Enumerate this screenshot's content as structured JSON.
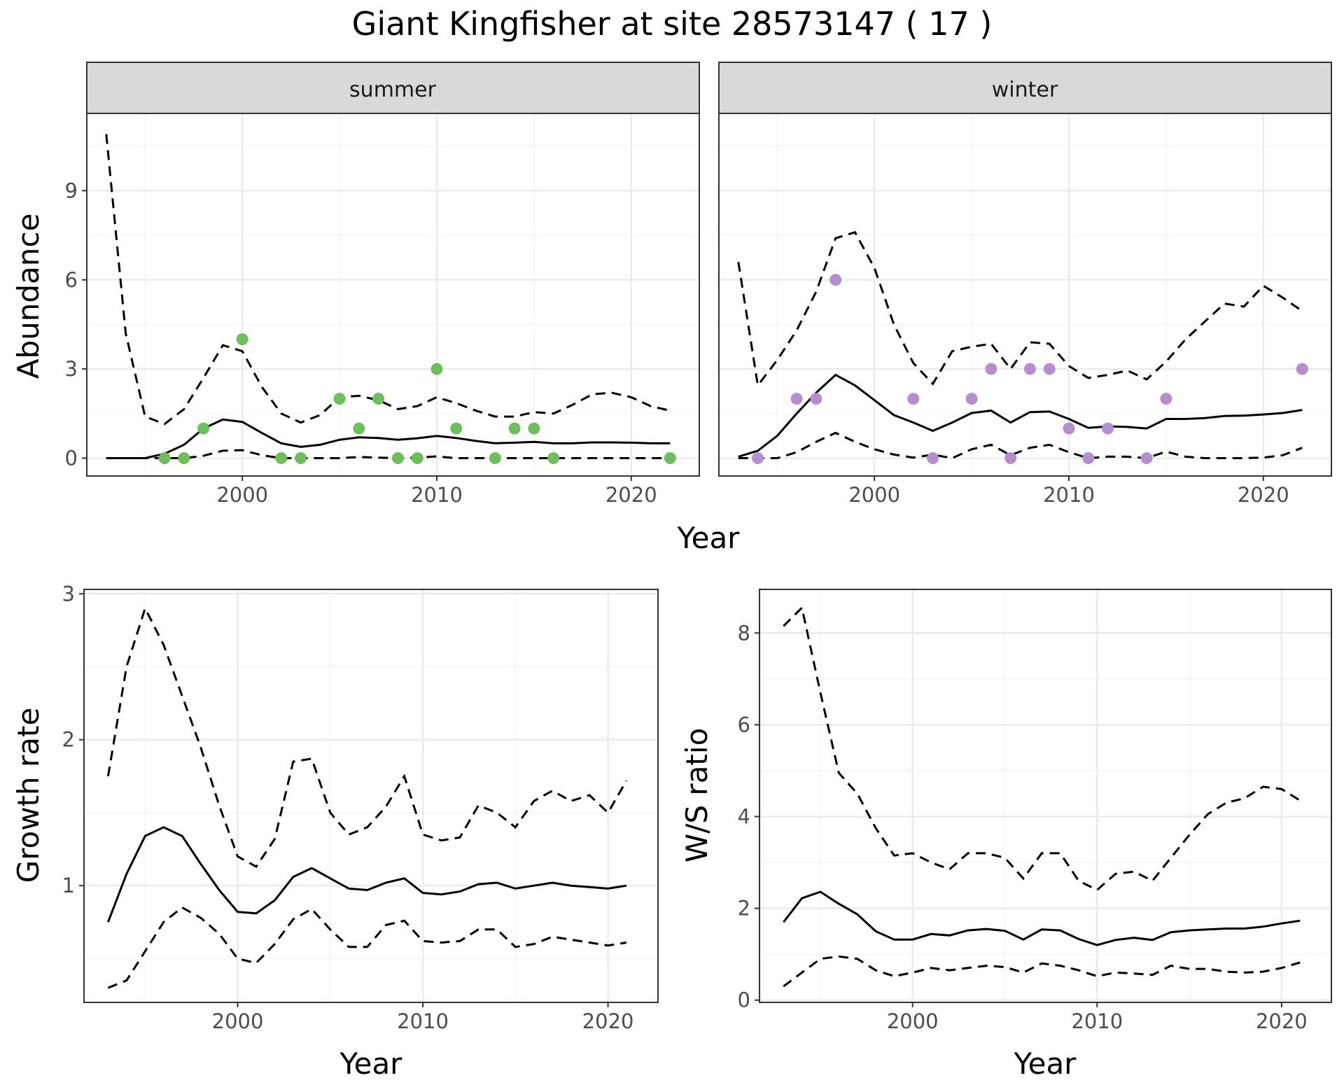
{
  "figure": {
    "title": "Giant Kingfisher at site 28573147 ( 17 )"
  },
  "colors": {
    "summer_points": "#6dbf5c",
    "winter_points": "#b48fd0",
    "line": "#000000",
    "grid_major": "#ebebeb",
    "grid_minor": "#f4f4f4",
    "strip_fill": "#d9d9d9",
    "panel_border": "#333333"
  },
  "chart_data": [
    {
      "type": "line",
      "panel": "abundance",
      "facets": [
        "summer",
        "winter"
      ],
      "xlabel": "Year",
      "ylabel": "Abundance",
      "xlim": [
        1992,
        2023.5
      ],
      "ylim": [
        -0.6,
        11.6
      ],
      "xticks": [
        2000,
        2010,
        2020
      ],
      "yticks": [
        0,
        3,
        6,
        9
      ],
      "grid": true,
      "summer": {
        "x": [
          1993,
          1994,
          1995,
          1996,
          1997,
          1998,
          1999,
          2000,
          2001,
          2002,
          2003,
          2004,
          2005,
          2006,
          2007,
          2008,
          2009,
          2010,
          2011,
          2012,
          2013,
          2014,
          2015,
          2016,
          2017,
          2018,
          2019,
          2020,
          2021,
          2022
        ],
        "mean": [
          0,
          0,
          0,
          0.15,
          0.45,
          1.0,
          1.3,
          1.22,
          0.85,
          0.5,
          0.38,
          0.45,
          0.62,
          0.7,
          0.68,
          0.62,
          0.67,
          0.75,
          0.68,
          0.58,
          0.5,
          0.52,
          0.55,
          0.5,
          0.5,
          0.53,
          0.53,
          0.52,
          0.5,
          0.5
        ],
        "upper": [
          10.9,
          4.2,
          1.4,
          1.15,
          1.65,
          2.7,
          3.8,
          3.6,
          2.4,
          1.5,
          1.2,
          1.45,
          2.05,
          2.1,
          1.95,
          1.65,
          1.75,
          2.05,
          1.85,
          1.6,
          1.4,
          1.4,
          1.55,
          1.5,
          1.8,
          2.15,
          2.2,
          2.05,
          1.75,
          1.6
        ],
        "lower": [
          0,
          0,
          0,
          0,
          0,
          0.08,
          0.25,
          0.27,
          0.1,
          0,
          0,
          0,
          0,
          0.04,
          0.02,
          0,
          0.02,
          0.06,
          0,
          0,
          0,
          0,
          0,
          0,
          0,
          0,
          0,
          0,
          0,
          0
        ],
        "points": [
          {
            "x": 1996,
            "y": 0
          },
          {
            "x": 1997,
            "y": 0
          },
          {
            "x": 1998,
            "y": 1
          },
          {
            "x": 2000,
            "y": 4
          },
          {
            "x": 2002,
            "y": 0
          },
          {
            "x": 2003,
            "y": 0
          },
          {
            "x": 2005,
            "y": 2
          },
          {
            "x": 2006,
            "y": 1
          },
          {
            "x": 2007,
            "y": 2
          },
          {
            "x": 2008,
            "y": 0
          },
          {
            "x": 2009,
            "y": 0
          },
          {
            "x": 2010,
            "y": 3
          },
          {
            "x": 2011,
            "y": 1
          },
          {
            "x": 2013,
            "y": 0
          },
          {
            "x": 2014,
            "y": 1
          },
          {
            "x": 2015,
            "y": 1
          },
          {
            "x": 2016,
            "y": 0
          },
          {
            "x": 2022,
            "y": 0
          }
        ]
      },
      "winter": {
        "x": [
          1993,
          1994,
          1995,
          1996,
          1997,
          1998,
          1999,
          2000,
          2001,
          2002,
          2003,
          2004,
          2005,
          2006,
          2007,
          2008,
          2009,
          2010,
          2011,
          2012,
          2013,
          2014,
          2015,
          2016,
          2017,
          2018,
          2019,
          2020,
          2021,
          2022
        ],
        "mean": [
          0.05,
          0.25,
          0.75,
          1.5,
          2.2,
          2.8,
          2.45,
          1.95,
          1.45,
          1.2,
          0.92,
          1.2,
          1.52,
          1.6,
          1.2,
          1.55,
          1.57,
          1.32,
          1.02,
          1.07,
          1.05,
          1.0,
          1.32,
          1.32,
          1.35,
          1.42,
          1.43,
          1.47,
          1.52,
          1.62
        ],
        "upper": [
          6.6,
          2.45,
          3.3,
          4.3,
          5.6,
          7.4,
          7.6,
          6.4,
          4.5,
          3.2,
          2.5,
          3.6,
          3.75,
          3.85,
          3.0,
          3.9,
          3.85,
          3.1,
          2.7,
          2.8,
          2.95,
          2.65,
          3.25,
          4.0,
          4.6,
          5.2,
          5.1,
          5.8,
          5.4,
          4.95
        ],
        "lower": [
          0,
          0,
          0,
          0.2,
          0.55,
          0.85,
          0.55,
          0.3,
          0.12,
          0.02,
          0.12,
          0,
          0.3,
          0.45,
          0.1,
          0.35,
          0.45,
          0.2,
          0,
          0.05,
          0.05,
          0,
          0.22,
          0.05,
          0,
          0,
          0,
          0.02,
          0.1,
          0.35
        ],
        "points": [
          {
            "x": 1994,
            "y": 0
          },
          {
            "x": 1996,
            "y": 2
          },
          {
            "x": 1997,
            "y": 2
          },
          {
            "x": 1998,
            "y": 6
          },
          {
            "x": 2002,
            "y": 2
          },
          {
            "x": 2003,
            "y": 0
          },
          {
            "x": 2005,
            "y": 2
          },
          {
            "x": 2006,
            "y": 3
          },
          {
            "x": 2007,
            "y": 0
          },
          {
            "x": 2008,
            "y": 3
          },
          {
            "x": 2009,
            "y": 3
          },
          {
            "x": 2010,
            "y": 1
          },
          {
            "x": 2011,
            "y": 0
          },
          {
            "x": 2012,
            "y": 1
          },
          {
            "x": 2014,
            "y": 0
          },
          {
            "x": 2015,
            "y": 2
          },
          {
            "x": 2022,
            "y": 3
          }
        ]
      }
    },
    {
      "type": "line",
      "panel": "growth",
      "xlabel": "Year",
      "ylabel": "Growth rate",
      "xlim": [
        1991.7,
        2022.7
      ],
      "ylim": [
        0.2,
        3.03
      ],
      "xticks": [
        2000,
        2010,
        2020
      ],
      "yticks": [
        1,
        2,
        3
      ],
      "grid": true,
      "x": [
        1993,
        1994,
        1995,
        1996,
        1997,
        1998,
        1999,
        2000,
        2001,
        2002,
        2003,
        2004,
        2005,
        2006,
        2007,
        2008,
        2009,
        2010,
        2011,
        2012,
        2013,
        2014,
        2015,
        2016,
        2017,
        2018,
        2019,
        2020,
        2021
      ],
      "mean": [
        0.75,
        1.08,
        1.34,
        1.4,
        1.34,
        1.15,
        0.97,
        0.82,
        0.81,
        0.9,
        1.06,
        1.12,
        1.05,
        0.98,
        0.97,
        1.02,
        1.05,
        0.95,
        0.94,
        0.96,
        1.01,
        1.02,
        0.98,
        1.0,
        1.02,
        1.0,
        0.99,
        0.98,
        1.0
      ],
      "upper": [
        1.75,
        2.5,
        2.9,
        2.65,
        2.3,
        1.95,
        1.55,
        1.2,
        1.13,
        1.32,
        1.85,
        1.87,
        1.5,
        1.35,
        1.4,
        1.54,
        1.75,
        1.35,
        1.31,
        1.33,
        1.55,
        1.5,
        1.4,
        1.58,
        1.65,
        1.58,
        1.62,
        1.5,
        1.72
      ],
      "lower": [
        0.3,
        0.35,
        0.55,
        0.75,
        0.85,
        0.78,
        0.67,
        0.5,
        0.47,
        0.6,
        0.77,
        0.84,
        0.7,
        0.58,
        0.58,
        0.73,
        0.76,
        0.62,
        0.61,
        0.62,
        0.7,
        0.7,
        0.58,
        0.6,
        0.65,
        0.63,
        0.61,
        0.59,
        0.61
      ]
    },
    {
      "type": "line",
      "panel": "ws_ratio",
      "xlabel": "Year",
      "ylabel": "W/S ratio",
      "xlim": [
        1991.7,
        2022.7
      ],
      "ylim": [
        -0.05,
        8.95
      ],
      "xticks": [
        2000,
        2010,
        2020
      ],
      "yticks": [
        0,
        2,
        4,
        6,
        8
      ],
      "grid": true,
      "x": [
        1993,
        1994,
        1995,
        1996,
        1997,
        1998,
        1999,
        2000,
        2001,
        2002,
        2003,
        2004,
        2005,
        2006,
        2007,
        2008,
        2009,
        2010,
        2011,
        2012,
        2013,
        2014,
        2015,
        2016,
        2017,
        2018,
        2019,
        2020,
        2021
      ],
      "mean": [
        1.7,
        2.22,
        2.36,
        2.1,
        1.87,
        1.5,
        1.32,
        1.32,
        1.44,
        1.41,
        1.52,
        1.55,
        1.51,
        1.32,
        1.54,
        1.52,
        1.33,
        1.2,
        1.31,
        1.36,
        1.31,
        1.48,
        1.52,
        1.54,
        1.56,
        1.56,
        1.6,
        1.67,
        1.73
      ],
      "upper": [
        8.15,
        8.55,
        6.7,
        4.95,
        4.5,
        3.75,
        3.15,
        3.2,
        3.0,
        2.85,
        3.2,
        3.2,
        3.1,
        2.65,
        3.2,
        3.2,
        2.6,
        2.4,
        2.75,
        2.8,
        2.6,
        3.1,
        3.6,
        4.05,
        4.3,
        4.4,
        4.65,
        4.6,
        4.35
      ],
      "lower": [
        0.3,
        0.6,
        0.9,
        0.95,
        0.9,
        0.65,
        0.52,
        0.6,
        0.7,
        0.65,
        0.7,
        0.75,
        0.72,
        0.6,
        0.8,
        0.75,
        0.65,
        0.52,
        0.6,
        0.58,
        0.55,
        0.75,
        0.68,
        0.68,
        0.62,
        0.6,
        0.62,
        0.7,
        0.82
      ]
    }
  ]
}
